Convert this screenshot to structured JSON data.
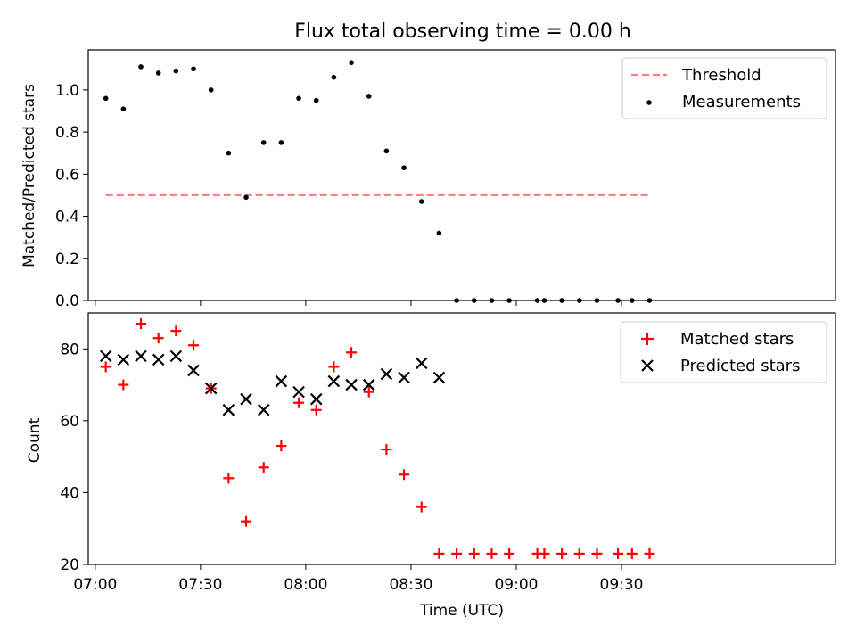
{
  "title": "Flux total observing time = 0.00 h",
  "colors": {
    "threshold": "#ff7f7f",
    "measurements": "#000000",
    "matched": "#ff0000",
    "predicted": "#000000"
  },
  "chart_data": [
    {
      "type": "scatter",
      "panel": "top",
      "title": "Flux total observing time = 0.00 h",
      "ylabel": "Matched/Predicted stars",
      "xlabel": "",
      "ylim": [
        0,
        1.19
      ],
      "yticks": [
        0.0,
        0.2,
        0.4,
        0.6,
        0.8,
        1.0
      ],
      "ytick_labels": [
        "0.0",
        "0.2",
        "0.4",
        "0.6",
        "0.8",
        "1.0"
      ],
      "xticks_minutes": [
        0,
        30,
        60,
        90,
        120,
        150
      ],
      "grid": false,
      "legend": {
        "placement": "top-right",
        "entries": [
          "Threshold",
          "Measurements"
        ]
      },
      "threshold": {
        "name": "Threshold",
        "x": [
          "07:03",
          "09:38"
        ],
        "y": 0.5,
        "style": "dashed"
      },
      "series": [
        {
          "name": "Measurements",
          "marker": "dot",
          "x": [
            "07:03",
            "07:08",
            "07:13",
            "07:18",
            "07:23",
            "07:28",
            "07:33",
            "07:38",
            "07:43",
            "07:48",
            "07:53",
            "07:58",
            "08:03",
            "08:08",
            "08:13",
            "08:18",
            "08:23",
            "08:28",
            "08:33",
            "08:38",
            "08:43",
            "08:48",
            "08:53",
            "08:58",
            "09:06",
            "09:08",
            "09:13",
            "09:18",
            "09:23",
            "09:29",
            "09:33",
            "09:38"
          ],
          "y": [
            0.96,
            0.91,
            1.11,
            1.08,
            1.09,
            1.1,
            1.0,
            0.7,
            0.49,
            0.75,
            0.75,
            0.96,
            0.95,
            1.06,
            1.13,
            0.97,
            0.71,
            0.63,
            0.47,
            0.32,
            0.0,
            0.0,
            0.0,
            0.0,
            0.0,
            0.0,
            0.0,
            0.0,
            0.0,
            0.0,
            0.0,
            0.0
          ]
        }
      ]
    },
    {
      "type": "scatter",
      "panel": "bottom",
      "ylabel": "Count",
      "xlabel": "Time (UTC)",
      "ylim": [
        20,
        90
      ],
      "yticks": [
        20,
        40,
        60,
        80
      ],
      "ytick_labels": [
        "20",
        "40",
        "60",
        "80"
      ],
      "xticks": [
        "07:00",
        "07:30",
        "08:00",
        "08:30",
        "09:00",
        "09:30"
      ],
      "xlim": [
        "06:58",
        "10:31"
      ],
      "grid": false,
      "legend": {
        "placement": "top-right",
        "entries": [
          "Matched stars",
          "Predicted stars"
        ]
      },
      "series": [
        {
          "name": "Matched stars",
          "marker": "plus",
          "x": [
            "07:03",
            "07:08",
            "07:13",
            "07:18",
            "07:23",
            "07:28",
            "07:33",
            "07:38",
            "07:43",
            "07:48",
            "07:53",
            "07:58",
            "08:03",
            "08:08",
            "08:13",
            "08:18",
            "08:23",
            "08:28",
            "08:33",
            "08:38",
            "08:43",
            "08:48",
            "08:53",
            "08:58",
            "09:06",
            "09:08",
            "09:13",
            "09:18",
            "09:23",
            "09:29",
            "09:33",
            "09:38"
          ],
          "y": [
            75,
            70,
            87,
            83,
            85,
            81,
            69,
            44,
            32,
            47,
            53,
            65,
            63,
            75,
            79,
            68,
            52,
            45,
            36,
            23,
            23,
            23,
            23,
            23,
            23,
            23,
            23,
            23,
            23,
            23,
            23,
            23
          ]
        },
        {
          "name": "Predicted stars",
          "marker": "x",
          "x": [
            "07:03",
            "07:08",
            "07:13",
            "07:18",
            "07:23",
            "07:28",
            "07:33",
            "07:38",
            "07:43",
            "07:48",
            "07:53",
            "07:58",
            "08:03",
            "08:08",
            "08:13",
            "08:18",
            "08:23",
            "08:28",
            "08:33",
            "08:38"
          ],
          "y": [
            78,
            77,
            78,
            77,
            78,
            74,
            69,
            63,
            66,
            63,
            71,
            68,
            66,
            71,
            70,
            70,
            73,
            72,
            76,
            72
          ]
        }
      ]
    }
  ]
}
